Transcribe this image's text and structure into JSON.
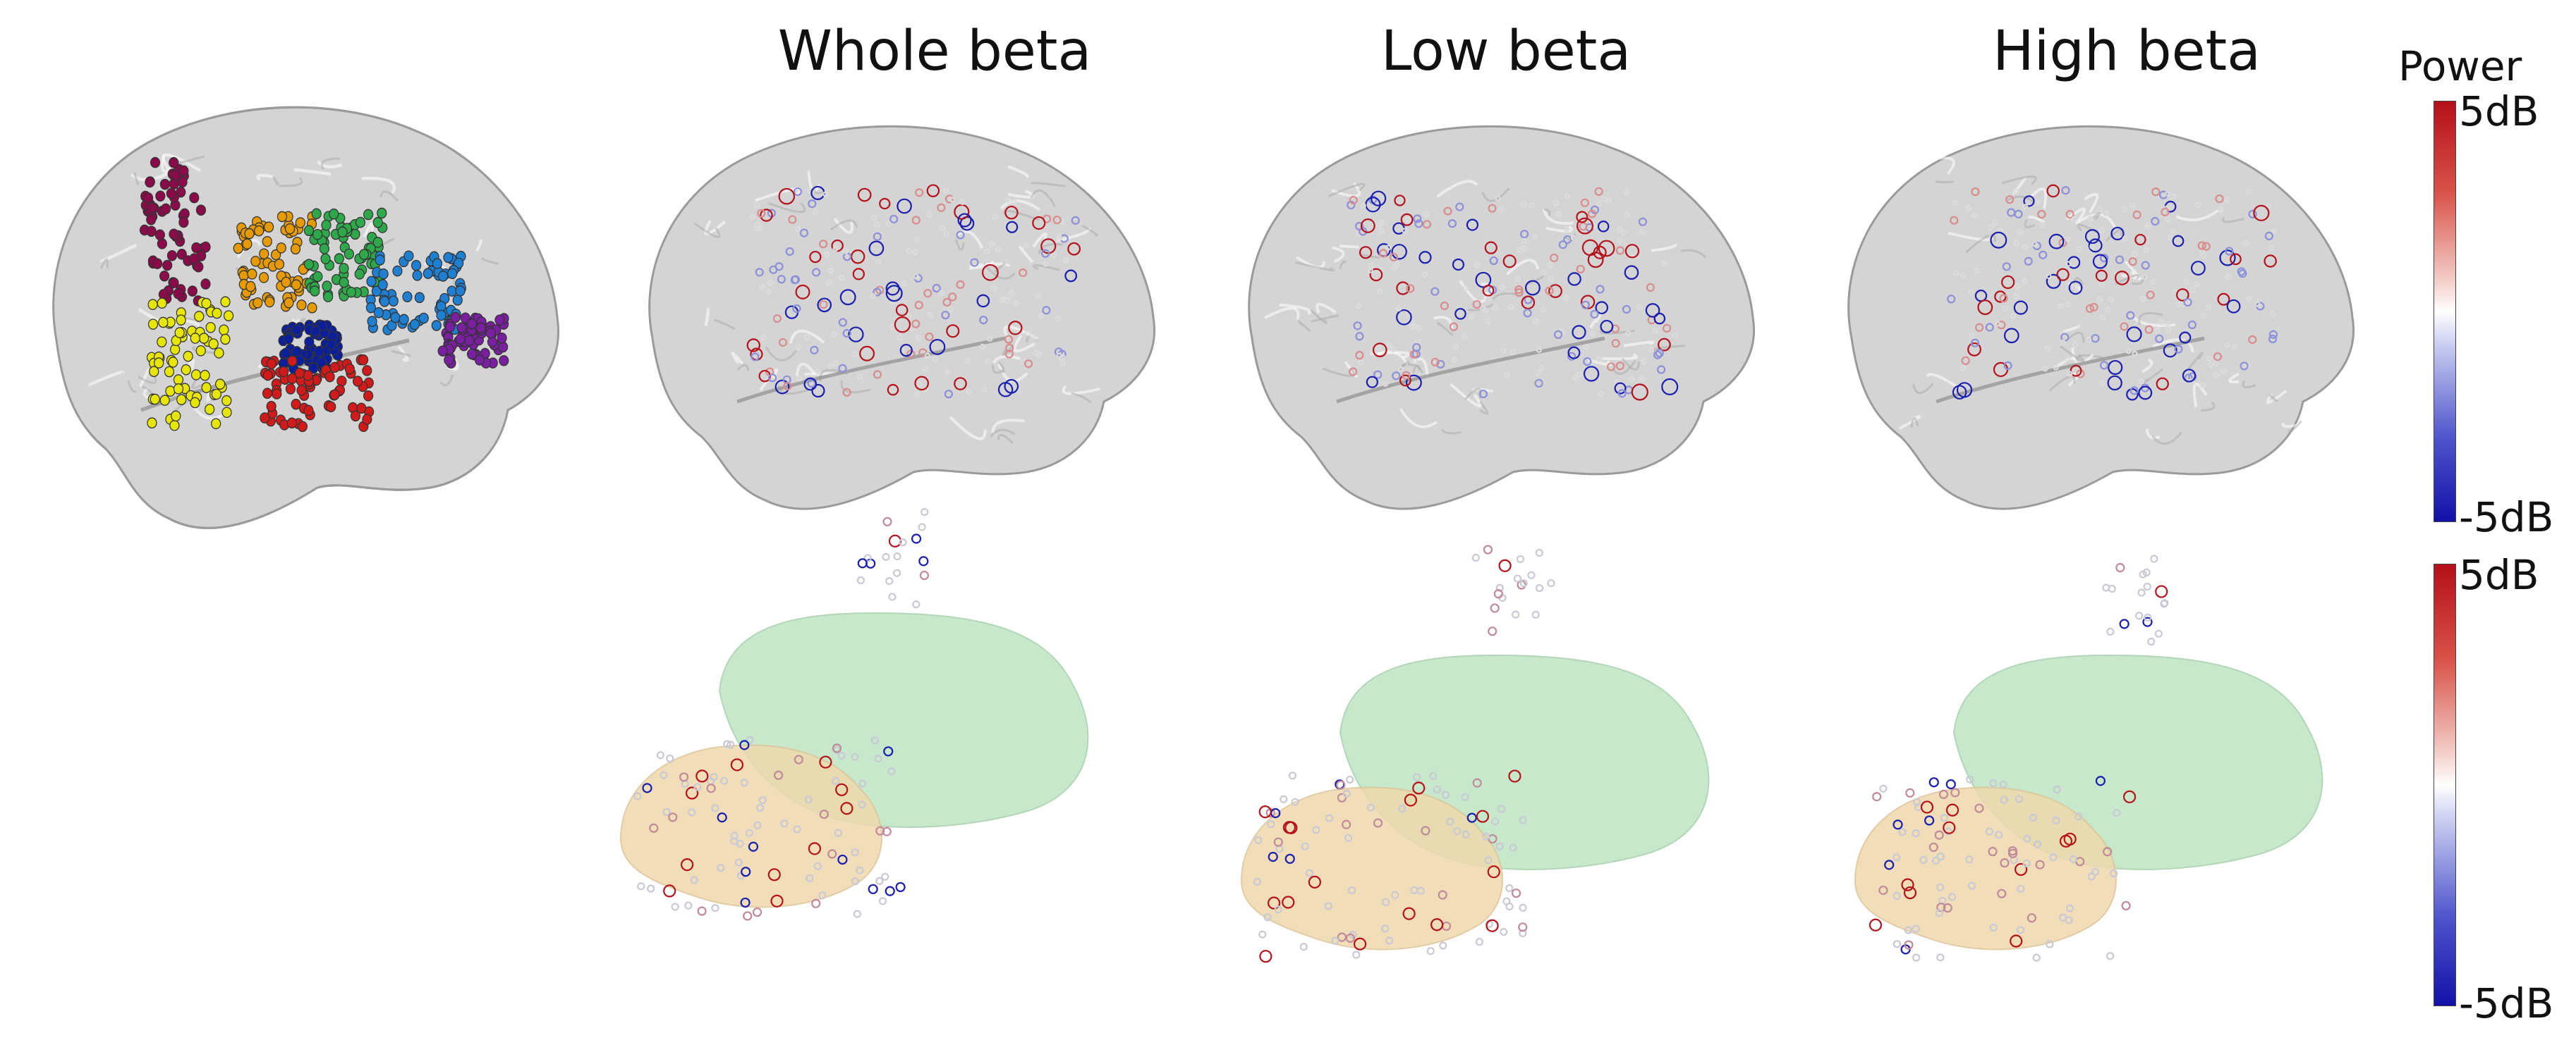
{
  "titles": {
    "whole": "Whole beta",
    "low": "Low beta",
    "high": "High beta"
  },
  "colorbar": {
    "label": "Power",
    "max": "5dB",
    "min": "-5dB"
  },
  "colors": {
    "brain": "#d4d4d4",
    "positive": "#b5121b",
    "negative": "#1a1fb0",
    "green_structure": "#bfe4c3",
    "tan_structure": "#efd9ad",
    "regions": [
      "#8b0a4a",
      "#e6e600",
      "#e59a00",
      "#2ea84a",
      "#1f7fd1",
      "#0b1f9c",
      "#d11a1a",
      "#7a1fa0"
    ]
  }
}
